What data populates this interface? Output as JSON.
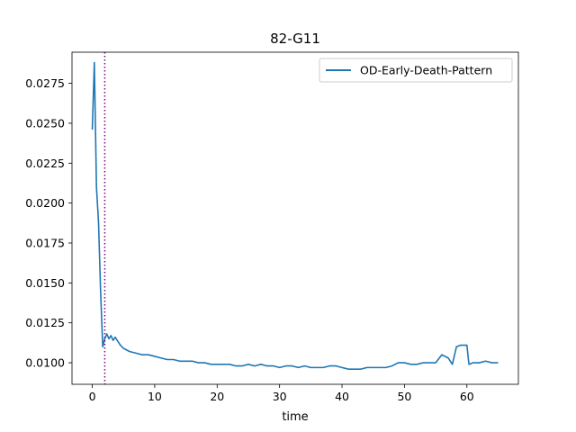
{
  "chart_data": {
    "type": "line",
    "title": "82-G11",
    "xlabel": "time",
    "ylabel": "",
    "xlim": [
      -3.25,
      68.25
    ],
    "ylim": [
      0.00865,
      0.02945
    ],
    "xticks": [
      0,
      10,
      20,
      30,
      40,
      50,
      60
    ],
    "xtick_labels": [
      "0",
      "10",
      "20",
      "30",
      "40",
      "50",
      "60"
    ],
    "yticks": [
      0.01,
      0.0125,
      0.015,
      0.0175,
      0.02,
      0.0225,
      0.025,
      0.0275
    ],
    "ytick_labels": [
      "0.0100",
      "0.0125",
      "0.0150",
      "0.0175",
      "0.0200",
      "0.0225",
      "0.0250",
      "0.0275"
    ],
    "grid": false,
    "legend_position": "top-right",
    "vline": {
      "x": 2.0,
      "color": "#800080",
      "style": "dotted"
    },
    "series": [
      {
        "name": "OD-Early-Death-Pattern",
        "color": "#1f77b4",
        "x": [
          0,
          0.33,
          0.67,
          1.0,
          1.33,
          1.67,
          2.0,
          2.33,
          2.67,
          3.0,
          3.33,
          3.67,
          4.0,
          4.5,
          5.0,
          5.5,
          6.0,
          7.0,
          8.0,
          9.0,
          10.0,
          11.0,
          12.0,
          13.0,
          14.0,
          15.0,
          16.0,
          17.0,
          18.0,
          19.0,
          20.0,
          21.0,
          22.0,
          23.0,
          24.0,
          25.0,
          26.0,
          27.0,
          28.0,
          29.0,
          30.0,
          31.0,
          32.0,
          33.0,
          34.0,
          35.0,
          36.0,
          37.0,
          38.0,
          39.0,
          40.0,
          41.0,
          42.0,
          43.0,
          44.0,
          45.0,
          46.0,
          47.0,
          48.0,
          49.0,
          50.0,
          51.0,
          52.0,
          53.0,
          54.0,
          55.0,
          56.0,
          57.0,
          57.67,
          58.33,
          59.0,
          60.0,
          60.33,
          61.0,
          62.0,
          63.0,
          64.0,
          65.0
        ],
        "y": [
          0.0246,
          0.0288,
          0.021,
          0.0188,
          0.0145,
          0.011,
          0.0115,
          0.0118,
          0.0115,
          0.0117,
          0.0114,
          0.0116,
          0.0114,
          0.0111,
          0.0109,
          0.0108,
          0.0107,
          0.0106,
          0.0105,
          0.0105,
          0.0104,
          0.0103,
          0.0102,
          0.0102,
          0.0101,
          0.0101,
          0.0101,
          0.01,
          0.01,
          0.0099,
          0.0099,
          0.0099,
          0.0099,
          0.0098,
          0.0098,
          0.0099,
          0.0098,
          0.0099,
          0.0098,
          0.0098,
          0.0097,
          0.0098,
          0.0098,
          0.0097,
          0.0098,
          0.0097,
          0.0097,
          0.0097,
          0.0098,
          0.0098,
          0.0097,
          0.0096,
          0.0096,
          0.0096,
          0.0097,
          0.0097,
          0.0097,
          0.0097,
          0.0098,
          0.01,
          0.01,
          0.0099,
          0.0099,
          0.01,
          0.01,
          0.01,
          0.0105,
          0.0103,
          0.0099,
          0.011,
          0.0111,
          0.0111,
          0.0099,
          0.01,
          0.01,
          0.0101,
          0.01,
          0.01
        ]
      }
    ]
  }
}
